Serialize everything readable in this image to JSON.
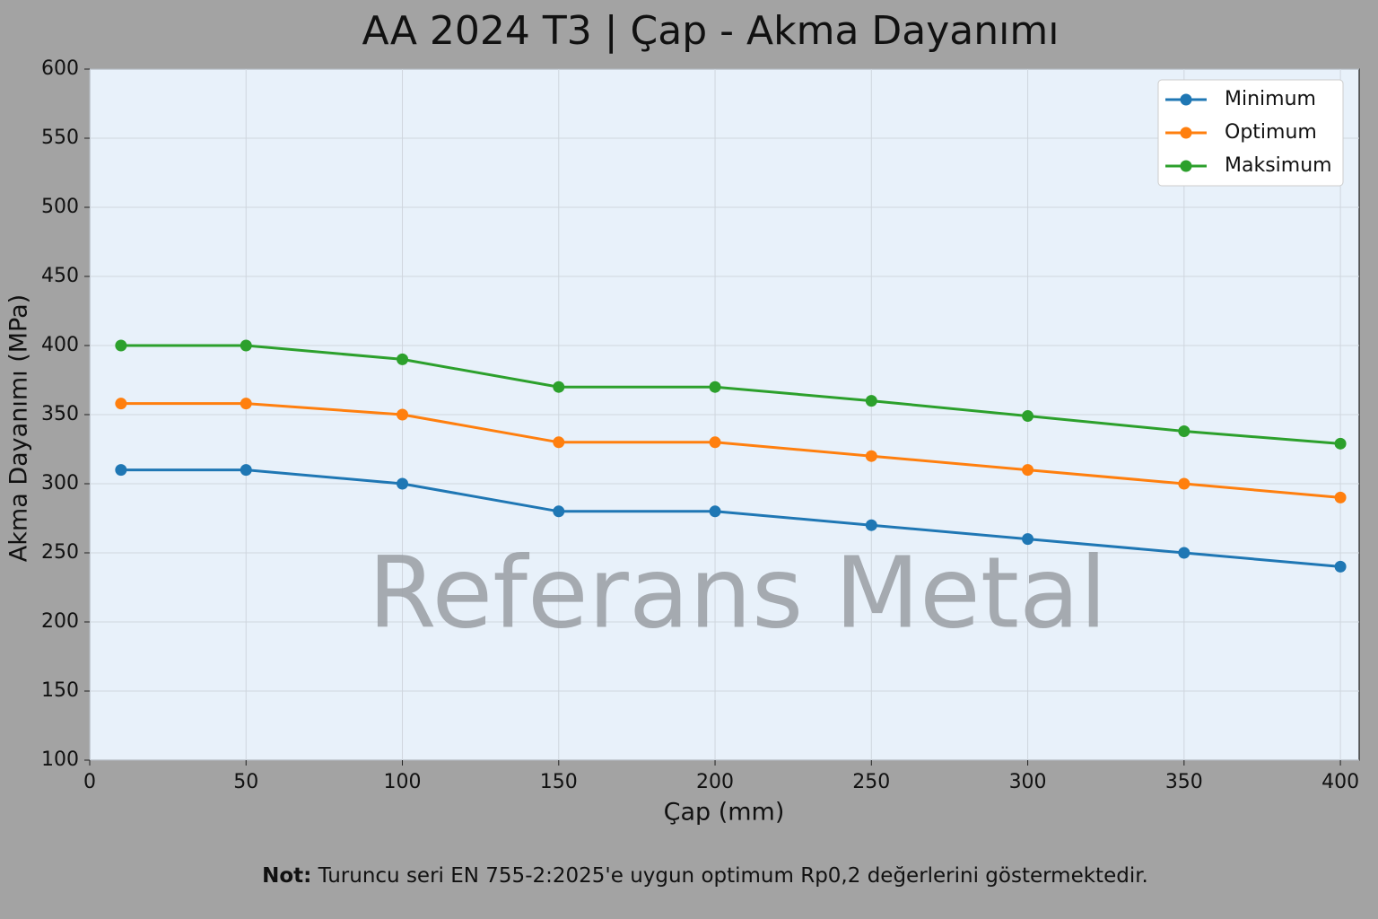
{
  "chart_data": {
    "type": "line",
    "title": "AA 2024 T3 | Çap - Akma Dayanımı",
    "x_label": "Çap (mm)",
    "y_label": "Akma Dayanımı  (MPa)",
    "watermark": "Referans Metal",
    "note_label": "Not:",
    "note": "Turuncu seri EN 755-2:2025'e uygun optimum Rp0,2 değerlerini göstermektedir.",
    "x": [
      10,
      50,
      100,
      150,
      200,
      250,
      300,
      350,
      400
    ],
    "series": [
      {
        "name": "Minimum",
        "color": "#1f77b4",
        "values": [
          310,
          310,
          300,
          280,
          280,
          270,
          260,
          250,
          240
        ]
      },
      {
        "name": "Optimum",
        "color": "#ff7f0e",
        "values": [
          358,
          358,
          350,
          330,
          330,
          320,
          310,
          300,
          290
        ]
      },
      {
        "name": "Maksimum",
        "color": "#2ca02c",
        "values": [
          400,
          400,
          390,
          370,
          370,
          360,
          349,
          338,
          329
        ]
      }
    ],
    "xlim": [
      0,
      406
    ],
    "xticks": [
      0,
      50,
      100,
      150,
      200,
      250,
      300,
      350,
      400
    ],
    "ylim": [
      100,
      600
    ],
    "yticks": [
      100,
      150,
      200,
      250,
      300,
      350,
      400,
      450,
      500,
      550,
      600
    ],
    "grid": true,
    "legend": "upper right"
  }
}
